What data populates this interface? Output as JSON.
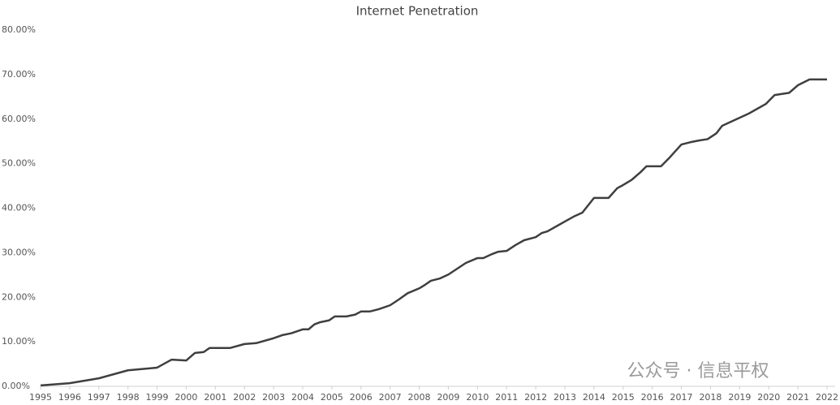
{
  "chart_data": {
    "type": "line",
    "title": "Internet Penetration",
    "x": [
      1995,
      1996,
      1997,
      1998,
      1999,
      1999.5,
      2000,
      2000.3,
      2000.6,
      2000.8,
      2001.5,
      2002,
      2002.4,
      2003,
      2003.3,
      2003.6,
      2004,
      2004.2,
      2004.4,
      2004.6,
      2004.9,
      2005.1,
      2005.5,
      2005.8,
      2006,
      2006.3,
      2006.6,
      2007,
      2007.3,
      2007.6,
      2008,
      2008.2,
      2008.4,
      2008.7,
      2009,
      2009.3,
      2009.6,
      2010,
      2010.2,
      2010.5,
      2010.7,
      2011,
      2011.3,
      2011.6,
      2012,
      2012.2,
      2012.4,
      2012.7,
      2013,
      2013.3,
      2013.6,
      2014,
      2014.5,
      2014.8,
      2015,
      2015.3,
      2015.6,
      2015.8,
      2016.3,
      2016.6,
      2017,
      2017.3,
      2017.6,
      2017.9,
      2018.2,
      2018.4,
      2018.8,
      2019.3,
      2019.6,
      2019.9,
      2020.2,
      2020.7,
      2021,
      2021.4,
      2022
    ],
    "series": [
      {
        "name": "Internet Penetration",
        "color": "#3f3f3f",
        "values": [
          0.2,
          0.7,
          1.8,
          3.6,
          4.2,
          6.0,
          5.8,
          7.5,
          7.7,
          8.6,
          8.6,
          9.5,
          9.7,
          10.8,
          11.5,
          11.9,
          12.8,
          12.8,
          13.9,
          14.4,
          14.8,
          15.7,
          15.7,
          16.1,
          16.8,
          16.8,
          17.3,
          18.2,
          19.5,
          20.9,
          22.0,
          22.8,
          23.7,
          24.2,
          25.1,
          26.4,
          27.7,
          28.8,
          28.8,
          29.7,
          30.2,
          30.4,
          31.7,
          32.8,
          33.5,
          34.4,
          34.8,
          35.9,
          37.0,
          38.1,
          39.0,
          42.3,
          42.3,
          44.5,
          45.2,
          46.4,
          48.1,
          49.4,
          49.4,
          51.4,
          54.3,
          54.8,
          55.2,
          55.5,
          56.8,
          58.5,
          59.7,
          61.2,
          62.3,
          63.4,
          65.4,
          65.9,
          67.6,
          68.9,
          68.9
        ]
      }
    ],
    "xlim": [
      1995,
      2022
    ],
    "xticks": [
      1995,
      1996,
      1997,
      1998,
      1999,
      2000,
      2001,
      2002,
      2003,
      2004,
      2005,
      2006,
      2007,
      2008,
      2009,
      2010,
      2011,
      2012,
      2013,
      2014,
      2015,
      2016,
      2017,
      2018,
      2019,
      2020,
      2021,
      2022
    ],
    "ylim": [
      0,
      80
    ],
    "yticks": [
      {
        "value": 0,
        "label": "0.00%"
      },
      {
        "value": 10,
        "label": "10.00%"
      },
      {
        "value": 20,
        "label": "20.00%"
      },
      {
        "value": 30,
        "label": "30.00%"
      },
      {
        "value": 40,
        "label": "40.00%"
      },
      {
        "value": 50,
        "label": "50.00%"
      },
      {
        "value": 60,
        "label": "60.00%"
      },
      {
        "value": 70,
        "label": "70.00%"
      },
      {
        "value": 80,
        "label": "80.00%"
      }
    ],
    "grid": false,
    "watermark": "公众号 · 信息平权"
  }
}
